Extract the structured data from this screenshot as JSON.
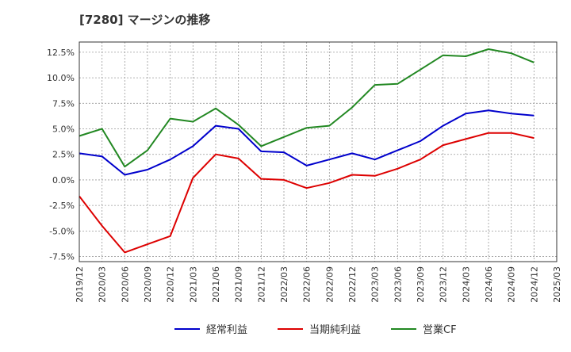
{
  "chart_data": {
    "type": "line",
    "title": "[7280]  マージンの推移",
    "xlabel": "",
    "ylabel": "",
    "x": [
      "2019/12",
      "2020/03",
      "2020/06",
      "2020/09",
      "2020/12",
      "2021/03",
      "2021/06",
      "2021/09",
      "2021/12",
      "2022/03",
      "2022/06",
      "2022/09",
      "2022/12",
      "2023/03",
      "2023/06",
      "2023/09",
      "2023/12",
      "2024/03",
      "2024/06",
      "2024/09",
      "2024/12",
      "2025/03"
    ],
    "ylim": [
      -8.0,
      13.5
    ],
    "yticks": [
      12.5,
      10.0,
      7.5,
      5.0,
      2.5,
      0.0,
      -2.5,
      -5.0,
      -7.5
    ],
    "ytick_labels": [
      "12.5%",
      "10.0%",
      "7.5%",
      "5.0%",
      "2.5%",
      "0.0%",
      "-2.5%",
      "-5.0%",
      "-7.5%"
    ],
    "grid": true,
    "legend_position": "bottom",
    "series": [
      {
        "name": "経常利益",
        "color": "#0000cc",
        "values": [
          2.6,
          2.3,
          0.5,
          1.0,
          2.0,
          3.3,
          5.3,
          5.0,
          2.8,
          2.7,
          1.4,
          2.0,
          2.6,
          2.0,
          2.9,
          3.8,
          5.3,
          6.5,
          6.8,
          6.5,
          6.3,
          null
        ]
      },
      {
        "name": "当期純利益",
        "color": "#dd0000",
        "values": [
          -1.6,
          -4.5,
          -7.1,
          -6.3,
          -5.5,
          0.2,
          2.5,
          2.1,
          0.1,
          0.0,
          -0.8,
          -0.3,
          0.5,
          0.4,
          1.1,
          2.0,
          3.4,
          4.0,
          4.6,
          4.6,
          4.1,
          null
        ]
      },
      {
        "name": "営業CF",
        "color": "#228822",
        "values": [
          4.3,
          5.0,
          1.3,
          2.9,
          6.0,
          5.7,
          7.0,
          5.4,
          3.3,
          4.2,
          5.1,
          5.3,
          7.1,
          9.3,
          9.4,
          10.8,
          12.2,
          12.1,
          12.8,
          12.4,
          11.5,
          null
        ]
      }
    ]
  }
}
